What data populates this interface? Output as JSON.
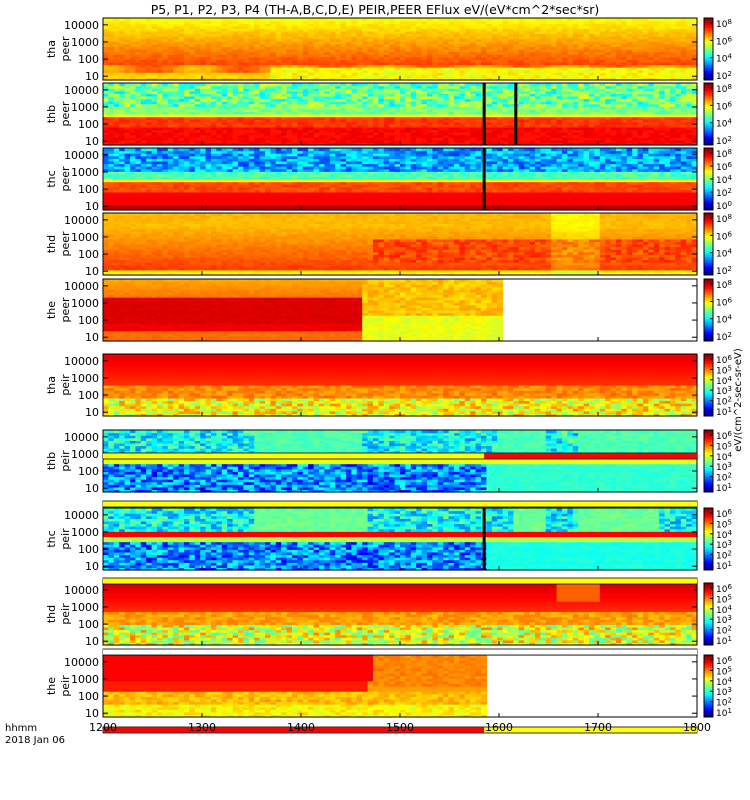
{
  "chart_data": {
    "type": "heatmap",
    "title": "P5, P1, P2, P3, P4 (TH-A,B,C,D,E) PEIR,PEER EFlux eV/(eV*cm^2*sec*sr)",
    "x": {
      "ticks": [
        1200,
        1300,
        1400,
        1500,
        1600,
        1700,
        1800
      ],
      "range": [
        1200,
        1800
      ],
      "tick_labels": [
        "1200",
        "1300",
        "1400",
        "1500",
        "1600",
        "1700",
        "1800"
      ],
      "label_line1": "hhmm",
      "label_line2": "2018 Jan 06"
    },
    "y_axis": {
      "scale": "log",
      "range": [
        6,
        25000
      ],
      "ticks": [
        10,
        100,
        1000,
        10000
      ],
      "tick_labels": [
        "10",
        "100",
        "1000",
        "10000"
      ]
    },
    "colorbar_label": "eV/(cm^2-sec-sr-eV)",
    "panels": [
      {
        "probe": "tha",
        "species": "peer",
        "cb_labels": [
          "10^8",
          "10^6",
          "10^4",
          "10^2"
        ],
        "style": "electron_tha",
        "data_end": 1800
      },
      {
        "probe": "thb",
        "species": "peer",
        "cb_labels": [
          "10^8",
          "10^6",
          "10^4",
          "10^2"
        ],
        "style": "electron_thb",
        "data_end": 1800,
        "spikes": [
          1585,
          1617
        ]
      },
      {
        "probe": "thc",
        "species": "peer",
        "cb_labels": [
          "10^8",
          "10^6",
          "10^4",
          "10^2",
          "10^0"
        ],
        "style": "electron_thc",
        "data_end": 1800,
        "spikes": [
          1585
        ]
      },
      {
        "probe": "thd",
        "species": "peer",
        "cb_labels": [
          "10^8",
          "10^6",
          "10^4",
          "10^2"
        ],
        "style": "electron_thd",
        "data_end": 1800
      },
      {
        "probe": "the",
        "species": "peer",
        "cb_labels": [
          "10^8",
          "10^6",
          "10^4",
          "10^2"
        ],
        "style": "electron_the",
        "data_end": 1605
      },
      {
        "probe": "tha",
        "species": "peir",
        "cb_labels": [
          "10^6",
          "10^5",
          "10^4",
          "10^3",
          "10^2",
          "10^1"
        ],
        "style": "ion_tha",
        "data_end": 1800
      },
      {
        "probe": "thb",
        "species": "peir",
        "cb_labels": [
          "10^6",
          "10^5",
          "10^4",
          "10^3",
          "10^2",
          "10^1"
        ],
        "style": "ion_thb",
        "data_end": 1800
      },
      {
        "probe": "thc",
        "species": "peir",
        "cb_labels": [
          "10^6",
          "10^5",
          "10^4",
          "10^3",
          "10^2",
          "10^1"
        ],
        "style": "ion_thc",
        "data_end": 1800,
        "spikes": [
          1585
        ]
      },
      {
        "probe": "thd",
        "species": "peir",
        "cb_labels": [
          "10^6",
          "10^5",
          "10^4",
          "10^3",
          "10^2",
          "10^1"
        ],
        "style": "ion_thd",
        "data_end": 1800
      },
      {
        "probe": "the",
        "species": "peir",
        "cb_labels": [
          "10^6",
          "10^5",
          "10^4",
          "10^3",
          "10^2",
          "10^1"
        ],
        "style": "ion_the",
        "data_end": 1585
      }
    ],
    "mode_bars": [
      {
        "after_panel": 5,
        "segments": [
          {
            "start": 1200,
            "end": 1585,
            "color": "#ffff00"
          },
          {
            "start": 1585,
            "end": 1800,
            "color": "#ff0000"
          }
        ]
      },
      {
        "after_panel": 6,
        "segments": [
          {
            "start": 1200,
            "end": 1800,
            "color": "#ffff00"
          }
        ]
      },
      {
        "after_panel": 7,
        "segments": [
          {
            "start": 1200,
            "end": 1800,
            "color": "#ffff00"
          }
        ]
      },
      {
        "after_panel": 8,
        "segments": [
          {
            "start": 1200,
            "end": 1800,
            "color": "#ffffff"
          }
        ]
      },
      {
        "after_panel": 9,
        "segments": [
          {
            "start": 1200,
            "end": 1585,
            "color": "#ff0000"
          },
          {
            "start": 1585,
            "end": 1800,
            "color": "#ffff00"
          }
        ]
      }
    ],
    "grid": false
  }
}
